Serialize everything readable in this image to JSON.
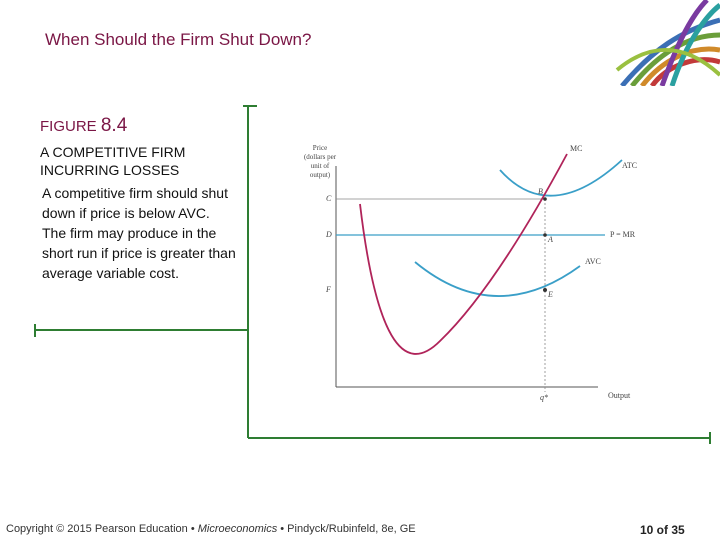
{
  "slide": {
    "title": "When Should the Firm Shut Down?",
    "figure_prefix": "FIGURE ",
    "figure_number": "8.4",
    "figure_title": "A COMPETITIVE FIRM INCURRING LOSSES",
    "description": [
      "A competitive firm should shut down if price is below AVC.",
      "The firm may produce in the short run if price is greater than average variable cost."
    ]
  },
  "diagram": {
    "y_axis_label": [
      "Price",
      "(dollars per",
      "unit of",
      "output)"
    ],
    "x_axis_label": "Output",
    "price_labels": {
      "C": "C",
      "D": "D",
      "F": "F"
    },
    "quantity_label": "q*",
    "curve_labels": {
      "mc": "MC",
      "atc": "ATC",
      "avc": "AVC",
      "pmr": "P = MR"
    },
    "point_labels": {
      "A": "A",
      "B": "B",
      "E": "E"
    },
    "colors": {
      "mc": "#b0245a",
      "atc": "#3a9fc8",
      "avc": "#3a9fc8",
      "pmr": "#3a9fc8",
      "guides": "#888888"
    }
  },
  "footer": {
    "prefix": "Copyright © 2015 Pearson Education • ",
    "book": "Microeconomics",
    "suffix": " • Pindyck/Rubinfeld, 8e, GE",
    "page": "10 of 35"
  },
  "accent_color": "#7a1645"
}
